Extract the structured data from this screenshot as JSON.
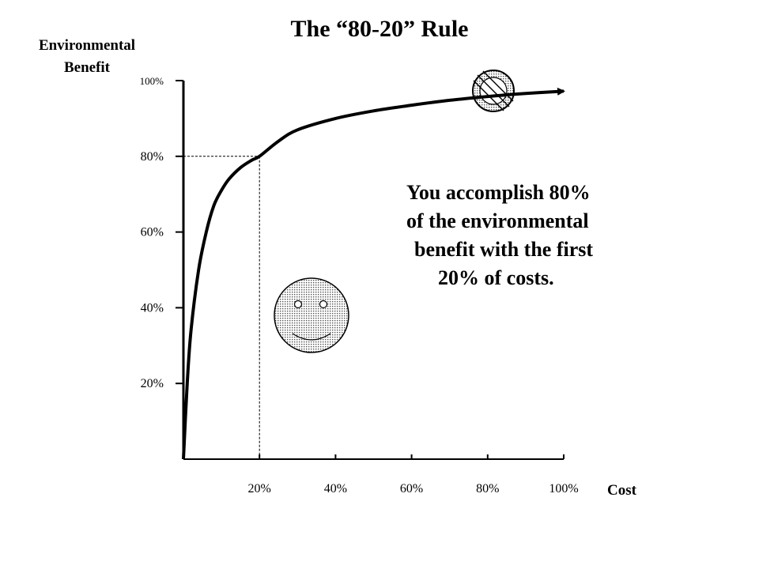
{
  "chart_data": {
    "type": "line",
    "title": "The “80-20” Rule",
    "ylabel_lines": [
      "Environmental",
      "Benefit"
    ],
    "xlabel": "Cost",
    "x_ticks": [
      "20%",
      "40%",
      "60%",
      "80%",
      "100%"
    ],
    "y_ticks": [
      "20%",
      "40%",
      "60%",
      "80%",
      "100%"
    ],
    "xlim": [
      0,
      100
    ],
    "ylim": [
      0,
      100
    ],
    "series": [
      {
        "x": [
          0,
          1,
          2,
          4,
          6,
          8,
          10,
          12,
          15,
          18,
          20,
          25,
          30,
          40,
          50,
          60,
          70,
          80,
          90,
          100
        ],
        "y": [
          0,
          20,
          34,
          50,
          60,
          67,
          71,
          74,
          77,
          79,
          80,
          84,
          87,
          90,
          92,
          93.5,
          94.8,
          95.8,
          96.6,
          97.2
        ]
      }
    ],
    "reference_point": {
      "x": 20,
      "y": 80
    },
    "annotation_lines": [
      "You accomplish 80%",
      "of the environmental",
      "benefit with the first",
      "20% of costs."
    ],
    "grid": false,
    "legend": "none"
  },
  "icons": {
    "smiley": "smiley-face-icon",
    "no_sign": "prohibition-sign-icon"
  },
  "colors": {
    "ink": "#000000",
    "background": "#ffffff"
  }
}
